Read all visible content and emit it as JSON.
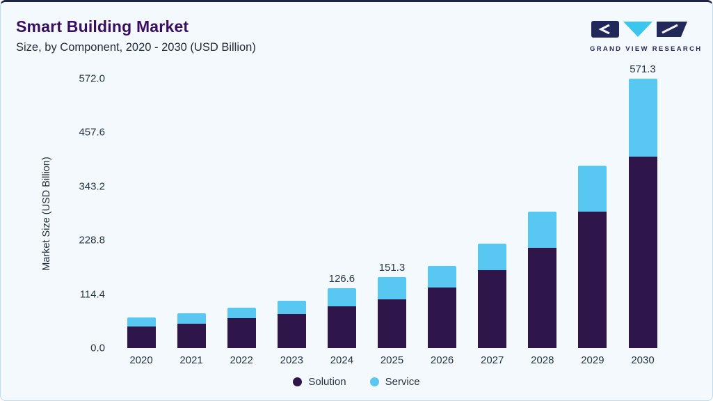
{
  "header": {
    "title": "Smart Building Market",
    "subtitle": "Size, by Component, 2020 - 2030 (USD Billion)"
  },
  "logo": {
    "text": "GRAND VIEW RESEARCH",
    "navy": "#23285a",
    "cyan": "#3bc6f0"
  },
  "chart_data": {
    "type": "bar",
    "stacked": true,
    "title": "Smart Building Market Size, by Component, 2020 - 2030 (USD Billion)",
    "categories": [
      "2020",
      "2021",
      "2022",
      "2023",
      "2024",
      "2025",
      "2026",
      "2027",
      "2028",
      "2029",
      "2030"
    ],
    "series": [
      {
        "name": "Solution",
        "color": "#2e164a",
        "values": [
          46,
          52,
          63,
          73,
          88,
          104,
          129,
          166,
          213,
          289,
          406
        ]
      },
      {
        "name": "Service",
        "color": "#58c7f2",
        "values": [
          19,
          22,
          23,
          27,
          38.6,
          47.3,
          46,
          56,
          77,
          99,
          165.3
        ]
      }
    ],
    "bar_labels": [
      "",
      "",
      "",
      "",
      "126.6",
      "151.3",
      "",
      "",
      "",
      "",
      "571.3"
    ],
    "xlabel": "",
    "ylabel": "Market Size (USD Billion)",
    "ytick_labels": [
      "572.0",
      "457.6",
      "343.2",
      "228.8",
      "114.4",
      "0.0"
    ],
    "ylim": [
      0,
      572
    ],
    "grid": false,
    "legend_position": "bottom"
  }
}
